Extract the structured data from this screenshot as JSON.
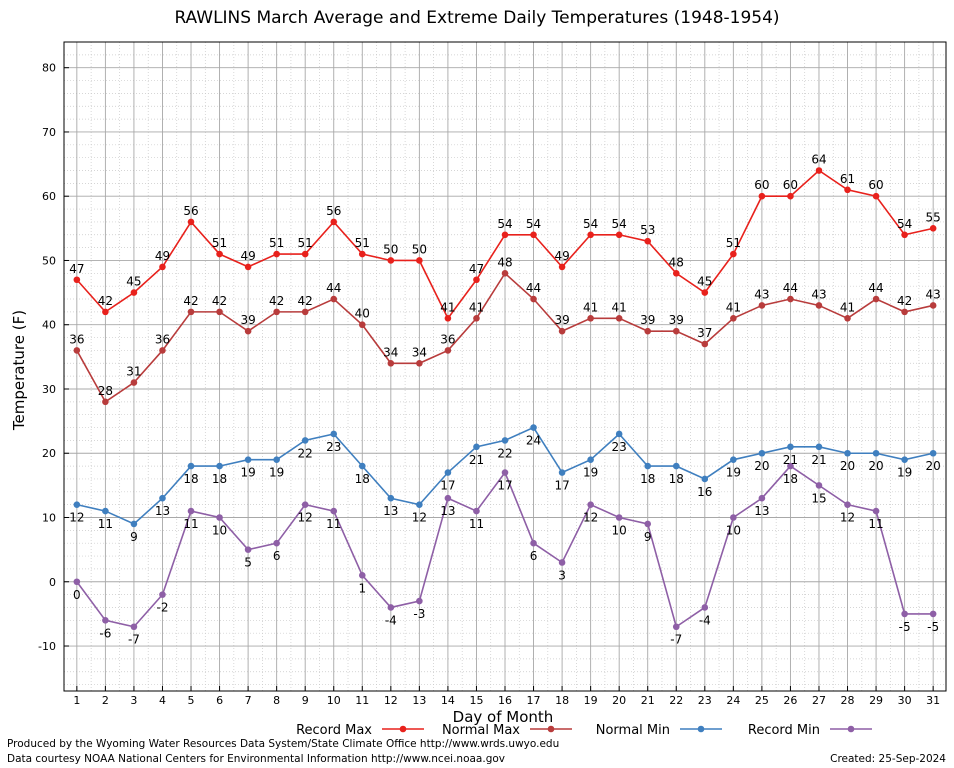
{
  "chart_data": {
    "type": "line",
    "title": "RAWLINS March Average and Extreme Daily Temperatures (1948-1954)",
    "xlabel": "Day of Month",
    "ylabel": "Temperature (F)",
    "x": [
      1,
      2,
      3,
      4,
      5,
      6,
      7,
      8,
      9,
      10,
      11,
      12,
      13,
      14,
      15,
      16,
      17,
      18,
      19,
      20,
      21,
      22,
      23,
      24,
      25,
      26,
      27,
      28,
      29,
      30,
      31
    ],
    "xlim": [
      0.55,
      31.45
    ],
    "ylim": [
      -17,
      84
    ],
    "yticks": [
      -10,
      0,
      10,
      20,
      30,
      40,
      50,
      60,
      70,
      80
    ],
    "grid": true,
    "legend_position": "bottom",
    "series": [
      {
        "name": "Record Max",
        "color": "#e8211c",
        "label_pos": "above",
        "values": [
          47,
          42,
          45,
          49,
          56,
          51,
          49,
          51,
          51,
          56,
          51,
          50,
          50,
          41,
          47,
          54,
          54,
          49,
          54,
          54,
          53,
          48,
          45,
          51,
          60,
          60,
          64,
          61,
          60,
          54,
          55
        ]
      },
      {
        "name": "Normal Max",
        "color": "#b83c3c",
        "label_pos": "above",
        "values": [
          36,
          28,
          31,
          36,
          42,
          42,
          39,
          42,
          42,
          44,
          40,
          34,
          34,
          36,
          41,
          48,
          44,
          39,
          41,
          41,
          39,
          39,
          37,
          41,
          43,
          44,
          43,
          41,
          44,
          42,
          43
        ]
      },
      {
        "name": "Normal Min",
        "color": "#3f7fbf",
        "label_pos": "below",
        "values": [
          12,
          11,
          9,
          13,
          18,
          18,
          19,
          19,
          22,
          23,
          18,
          13,
          12,
          17,
          21,
          22,
          24,
          17,
          19,
          23,
          18,
          18,
          16,
          19,
          20,
          21,
          21,
          20,
          20,
          19,
          20
        ]
      },
      {
        "name": "Record Min",
        "color": "#8e5fa6",
        "label_pos": "below",
        "values": [
          0,
          -6,
          -7,
          -2,
          11,
          10,
          5,
          6,
          12,
          11,
          1,
          -4,
          -3,
          13,
          11,
          17,
          6,
          3,
          12,
          10,
          9,
          -7,
          -4,
          10,
          13,
          18,
          15,
          12,
          11,
          -5,
          -5
        ]
      }
    ]
  },
  "footer": {
    "produced_by": "Produced by the Wyoming Water Resources Data System/State Climate Office http://www.wrds.uwyo.edu",
    "data_courtesy": "Data courtesy NOAA National Centers for Environmental Information http://www.ncei.noaa.gov",
    "created": "Created:  25-Sep-2024"
  }
}
